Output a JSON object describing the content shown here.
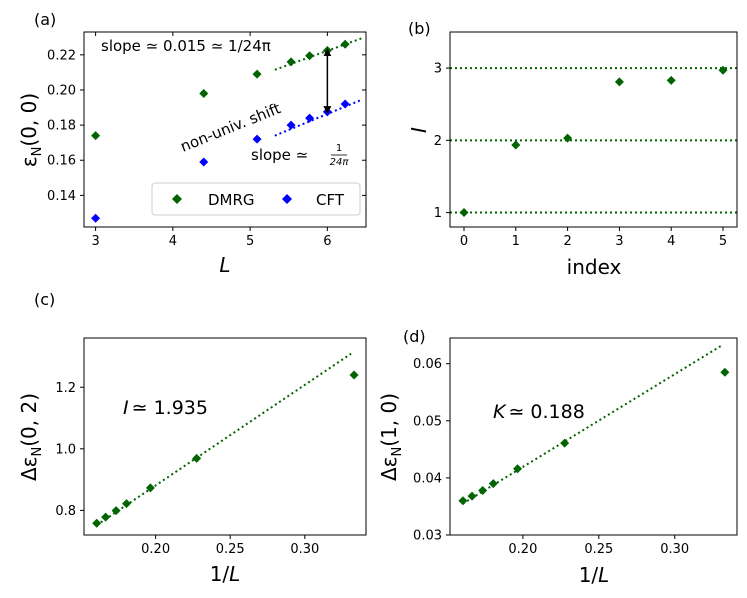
{
  "colors": {
    "dmrg": "#006400",
    "cft": "#0000ff",
    "fit": "#006400",
    "cft_fit": "#0000ff"
  },
  "chart_data": [
    {
      "panel": "(a)",
      "type": "scatter",
      "xlabel": "L",
      "ylabel": "εN(0, 0)",
      "xlim": [
        2.85,
        6.5
      ],
      "ylim": [
        0.122,
        0.233
      ],
      "xticks": [
        3,
        4,
        5,
        6
      ],
      "yticks": [
        0.14,
        0.16,
        0.18,
        0.2,
        0.22
      ],
      "series": [
        {
          "name": "DMRG",
          "color": "#006400",
          "x": [
            3,
            4.4,
            5.09,
            5.53,
            5.77,
            6.0,
            6.23
          ],
          "y": [
            0.174,
            0.198,
            0.209,
            0.216,
            0.2195,
            0.2225,
            0.226
          ]
        },
        {
          "name": "CFT",
          "color": "#0000ff",
          "x": [
            3,
            4.4,
            5.09,
            5.53,
            5.77,
            6.0,
            6.23
          ],
          "y": [
            0.127,
            0.159,
            0.172,
            0.18,
            0.184,
            0.1875,
            0.192
          ]
        }
      ],
      "fits": [
        {
          "name": "DMRG fit",
          "color": "#006400",
          "x": [
            5.32,
            6.45
          ],
          "y": [
            0.2115,
            0.2295
          ]
        },
        {
          "name": "CFT fit",
          "color": "#0000ff",
          "x": [
            5.32,
            6.45
          ],
          "y": [
            0.174,
            0.1945
          ]
        }
      ],
      "annotations": {
        "slope_top": "slope ≃ 0.015 ≃ 1/24π",
        "slope_bottom_prefix": "slope ≃",
        "frac_num": "1",
        "frac_den": "24π",
        "shift": "non-univ. shift"
      },
      "arrow": {
        "x": 6.0,
        "y_from": 0.2215,
        "y_to": 0.1885
      },
      "legend": {
        "placement": "lower-right",
        "entries": [
          "DMRG",
          "CFT"
        ]
      }
    },
    {
      "panel": "(b)",
      "type": "scatter",
      "xlabel": "index",
      "ylabel": "I",
      "xlim": [
        -0.27,
        5.27
      ],
      "ylim": [
        0.8,
        3.5
      ],
      "xticks": [
        0,
        1,
        2,
        3,
        4,
        5
      ],
      "yticks": [
        1,
        2,
        3
      ],
      "series": [
        {
          "name": "DMRG",
          "color": "#006400",
          "x": [
            0,
            1,
            2,
            3,
            4,
            5
          ],
          "y": [
            1.0,
            1.935,
            2.03,
            2.81,
            2.83,
            2.97
          ]
        }
      ],
      "hlines": [
        1,
        2,
        3
      ]
    },
    {
      "panel": "(c)",
      "type": "scatter",
      "xlabel": "1/L",
      "ylabel": "ΔεN(0, 2)",
      "xlim": [
        0.152,
        0.341
      ],
      "ylim": [
        0.72,
        1.36
      ],
      "xticks": [
        0.2,
        0.25,
        0.3
      ],
      "yticks": [
        0.8,
        1.0,
        1.2
      ],
      "series": [
        {
          "name": "DMRG",
          "color": "#006400",
          "x": [
            0.1605,
            0.1665,
            0.1735,
            0.1805,
            0.1965,
            0.2275,
            0.333
          ],
          "y": [
            0.758,
            0.778,
            0.799,
            0.822,
            0.873,
            0.969,
            1.24
          ]
        }
      ],
      "fit": {
        "x": [
          0.1605,
          0.331
        ],
        "y": [
          0.752,
          1.309
        ]
      },
      "annotation_prefix": "I",
      "annotation_value": "≃ 1.935"
    },
    {
      "panel": "(d)",
      "type": "scatter",
      "xlabel": "1/L",
      "ylabel": "ΔεN(1, 0)",
      "xlim": [
        0.152,
        0.341
      ],
      "ylim": [
        0.03,
        0.0645
      ],
      "xticks": [
        0.2,
        0.25,
        0.3
      ],
      "yticks": [
        0.03,
        0.04,
        0.05,
        0.06
      ],
      "series": [
        {
          "name": "DMRG",
          "color": "#006400",
          "x": [
            0.1605,
            0.1665,
            0.1735,
            0.1805,
            0.1965,
            0.2275,
            0.333
          ],
          "y": [
            0.036,
            0.0368,
            0.0378,
            0.039,
            0.0416,
            0.0461,
            0.0585
          ]
        }
      ],
      "fit": {
        "x": [
          0.1605,
          0.331
        ],
        "y": [
          0.0355,
          0.0632
        ]
      },
      "annotation_prefix": "K",
      "annotation_value": "≃ 0.188"
    }
  ]
}
